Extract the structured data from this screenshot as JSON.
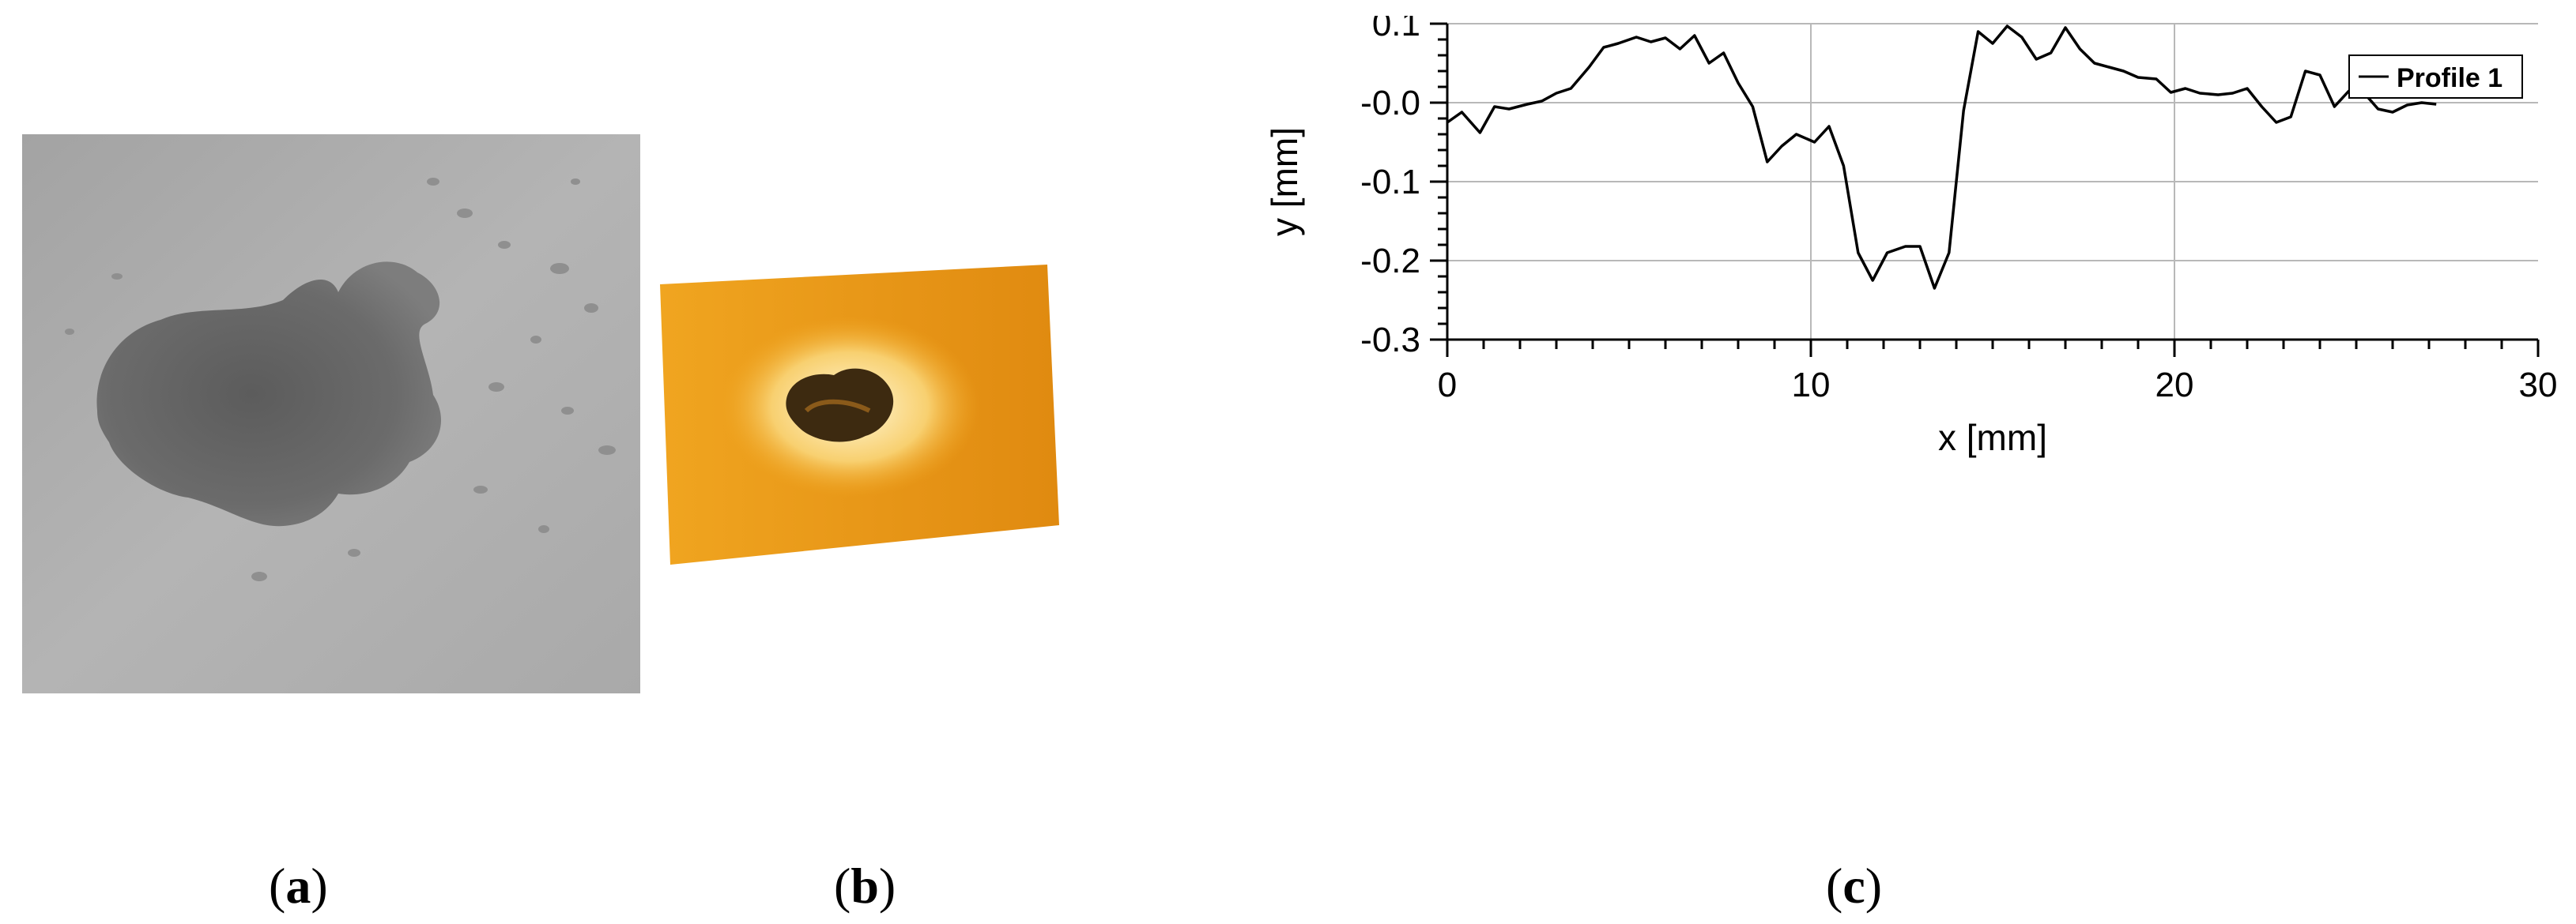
{
  "captions": {
    "a": "a",
    "b": "b",
    "c": "c"
  },
  "chart_data": {
    "type": "line",
    "title": "",
    "xlabel": "x [mm]",
    "ylabel": "y [mm]",
    "xlim": [
      0,
      30
    ],
    "ylim": [
      -0.3,
      0.1
    ],
    "x_ticks": [
      0,
      10,
      20,
      30
    ],
    "x_tick_labels": [
      "0",
      "10",
      "20",
      "30"
    ],
    "y_ticks": [
      0.1,
      0.0,
      -0.1,
      -0.2,
      -0.3
    ],
    "y_tick_labels": [
      "0.1",
      "-0.0",
      "-0.1",
      "-0.2",
      "-0.3"
    ],
    "grid": true,
    "legend_position": "top-right",
    "series": [
      {
        "name": "Profile 1",
        "color": "#000000",
        "x": [
          0,
          0.4,
          0.9,
          1.3,
          1.7,
          2.2,
          2.6,
          3.0,
          3.4,
          3.9,
          4.3,
          4.7,
          5.2,
          5.6,
          6.0,
          6.4,
          6.8,
          7.2,
          7.6,
          8.0,
          8.4,
          8.8,
          9.2,
          9.6,
          10.1,
          10.5,
          10.9,
          11.3,
          11.7,
          12.1,
          12.6,
          13.0,
          13.4,
          13.8,
          14.2,
          14.6,
          15.0,
          15.4,
          15.8,
          16.2,
          16.6,
          17.0,
          17.4,
          17.8,
          18.2,
          18.6,
          19.0,
          19.5,
          19.9,
          20.3,
          20.7,
          21.2,
          21.6,
          22.0,
          22.4,
          22.8,
          23.2,
          23.6,
          24.0,
          24.4,
          24.8,
          25.2,
          25.6,
          26.0,
          26.4,
          26.8,
          27.2
        ],
        "y": [
          -0.025,
          -0.012,
          -0.038,
          -0.005,
          -0.008,
          -0.002,
          0.002,
          0.012,
          0.018,
          0.045,
          0.07,
          0.075,
          0.083,
          0.077,
          0.082,
          0.068,
          0.085,
          0.05,
          0.063,
          0.025,
          -0.005,
          -0.075,
          -0.055,
          -0.04,
          -0.05,
          -0.03,
          -0.08,
          -0.19,
          -0.225,
          -0.19,
          -0.182,
          -0.182,
          -0.235,
          -0.19,
          -0.01,
          0.09,
          0.075,
          0.097,
          0.083,
          0.055,
          0.063,
          0.095,
          0.068,
          0.05,
          0.045,
          0.04,
          0.032,
          0.03,
          0.013,
          0.018,
          0.012,
          0.01,
          0.012,
          0.018,
          -0.005,
          -0.025,
          -0.018,
          0.04,
          0.035,
          -0.005,
          0.015,
          0.013,
          -0.008,
          -0.012,
          -0.003,
          0.0,
          -0.002
        ]
      }
    ]
  }
}
